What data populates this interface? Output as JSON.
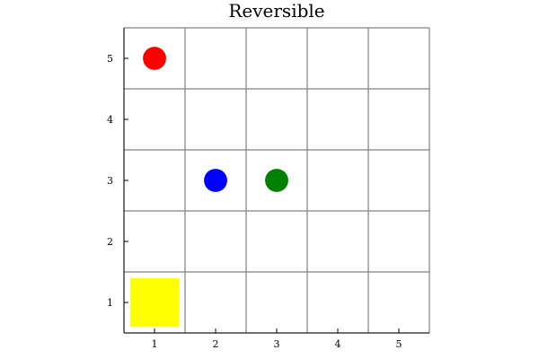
{
  "title": "Reversible",
  "grid": {
    "rows": 5,
    "cols": 5,
    "line_color": "#808080",
    "background": "#ffffff"
  },
  "axes": {
    "x_ticks": [
      "1",
      "2",
      "3",
      "4",
      "5"
    ],
    "y_ticks": [
      "1",
      "2",
      "3",
      "4",
      "5"
    ],
    "xlim": [
      0.5,
      5.5
    ],
    "ylim": [
      0.5,
      5.5
    ],
    "axis_color": "#000000"
  },
  "pieces": [
    {
      "id": "red-circle",
      "shape": "circle",
      "color": "#ff0000",
      "col": 1,
      "row": 5
    },
    {
      "id": "blue-circle",
      "shape": "circle",
      "color": "#0000ff",
      "col": 2,
      "row": 3
    },
    {
      "id": "green-circle",
      "shape": "circle",
      "color": "#008000",
      "col": 3,
      "row": 3
    },
    {
      "id": "yellow-square",
      "shape": "square",
      "color": "#ffff00",
      "col": 1,
      "row": 1
    }
  ]
}
